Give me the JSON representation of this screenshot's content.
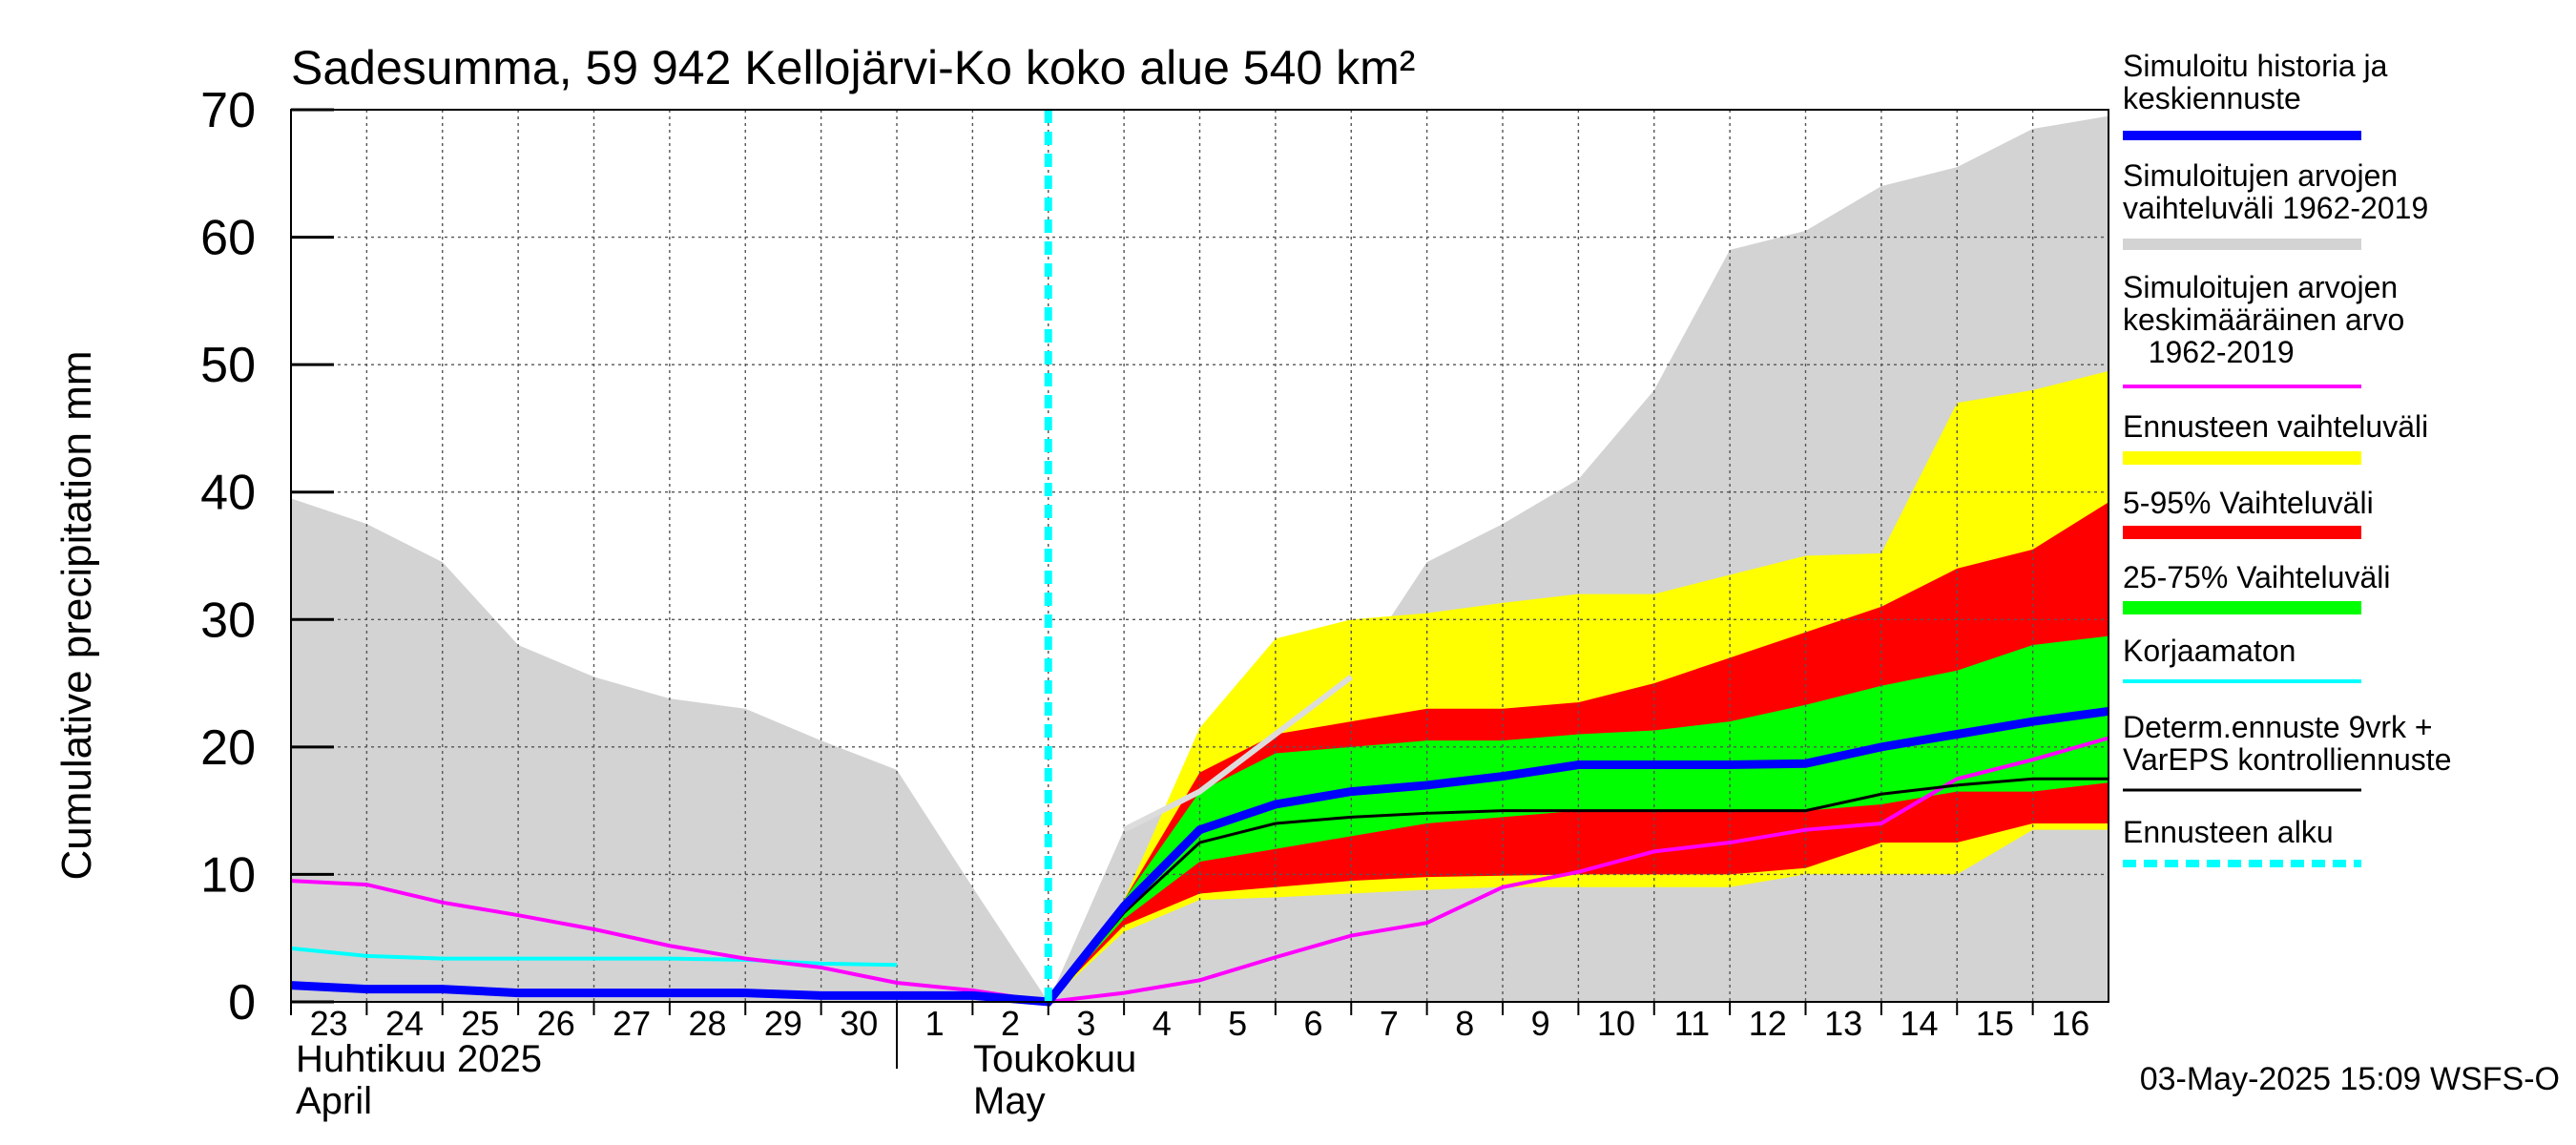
{
  "chart_data": {
    "type": "area",
    "title": "Sadesumma, 59 942 Kellojärvi-Ko koko alue 540 km²",
    "ylabel": "Cumulative precipitation   mm",
    "ylim": [
      0,
      70
    ],
    "yticks": [
      0,
      10,
      20,
      30,
      40,
      50,
      60,
      70
    ],
    "x_start_day": -10,
    "x_end_day": 14,
    "x_tick_labels": [
      "23",
      "24",
      "25",
      "26",
      "27",
      "28",
      "29",
      "30",
      "1",
      "2",
      "3",
      "4",
      "5",
      "6",
      "7",
      "8",
      "9",
      "10",
      "11",
      "12",
      "13",
      "14",
      "15",
      "16"
    ],
    "month_labels": {
      "april_fi": "Huhtikuu  2025",
      "april_en": "April",
      "may_fi": "Toukokuu",
      "may_en": "May"
    },
    "forecast_start_day": 0,
    "timestamp": "03-May-2025 15:09 WSFS-O",
    "colors": {
      "sim_range": "#d3d3d3",
      "ens_range": "#ffff00",
      "p5_95": "#ff0000",
      "p25_75": "#00ff00",
      "sim_hist": "#0000ff",
      "mean": "#ff00ff",
      "uncorrected": "#00ffff",
      "determ": "#000000",
      "forecast_start": "#00ffff"
    },
    "series": {
      "sim_range_upper": {
        "x": [
          -10,
          -9,
          -8,
          -7,
          -6,
          -5,
          -4,
          -3,
          -2,
          -1,
          0,
          1,
          2,
          3,
          4,
          5,
          6,
          7,
          8,
          9,
          10,
          11,
          12,
          13,
          14
        ],
        "values": [
          39.5,
          37.5,
          34.5,
          28,
          25.5,
          23.8,
          23,
          20.5,
          18.2,
          9,
          0,
          13.5,
          16.5,
          21,
          25.5,
          34.5,
          37.5,
          41,
          48,
          59,
          60.5,
          64,
          65.5,
          68.5,
          69.5
        ]
      },
      "sim_range_lower": {
        "x": [
          -10,
          0,
          14
        ],
        "values": [
          0,
          0,
          0
        ]
      },
      "ens_upper": {
        "x": [
          0,
          1,
          2,
          3,
          4,
          5,
          6,
          7,
          8,
          9,
          10,
          11,
          12,
          13,
          14
        ],
        "values": [
          0,
          8,
          21.5,
          28.5,
          30,
          30.5,
          31.3,
          32,
          32,
          33.5,
          35,
          35.2,
          47,
          48,
          49.5
        ]
      },
      "ens_lower": {
        "x": [
          0,
          1,
          2,
          3,
          4,
          5,
          6,
          7,
          8,
          9,
          10,
          11,
          12,
          13,
          14
        ],
        "values": [
          0,
          5.5,
          8,
          8.2,
          8.5,
          8.8,
          9,
          9,
          9,
          9,
          10,
          10,
          10,
          13.5,
          13.5
        ]
      },
      "p95": {
        "x": [
          0,
          1,
          2,
          3,
          4,
          5,
          6,
          7,
          8,
          9,
          10,
          11,
          12,
          13,
          14
        ],
        "values": [
          0,
          8,
          18,
          21,
          22,
          23,
          23,
          23.5,
          25,
          27,
          29,
          31,
          34,
          35.5,
          39.2
        ]
      },
      "p5": {
        "x": [
          0,
          1,
          2,
          3,
          4,
          5,
          6,
          7,
          8,
          9,
          10,
          11,
          12,
          13,
          14
        ],
        "values": [
          0,
          6,
          8.5,
          9,
          9.5,
          9.8,
          9.9,
          10,
          10,
          10,
          10.5,
          12.5,
          12.5,
          14,
          14
        ]
      },
      "p75": {
        "x": [
          0,
          1,
          2,
          3,
          4,
          5,
          6,
          7,
          8,
          9,
          10,
          11,
          12,
          13,
          14
        ],
        "values": [
          0,
          8,
          16.5,
          19.5,
          20,
          20.5,
          20.5,
          21,
          21.3,
          22,
          23.3,
          24.8,
          26,
          28,
          28.7
        ]
      },
      "p25": {
        "x": [
          0,
          1,
          2,
          3,
          4,
          5,
          6,
          7,
          8,
          9,
          10,
          11,
          12,
          13,
          14
        ],
        "values": [
          0,
          6.5,
          11,
          12,
          13,
          14,
          14.5,
          15,
          15,
          15,
          15,
          15.5,
          16.5,
          16.5,
          17.2
        ]
      },
      "sim_hist": {
        "x": [
          -10,
          -9,
          -8,
          -7,
          -6,
          -5,
          -4,
          -3,
          -2,
          -1,
          0,
          1,
          2,
          3,
          4,
          5,
          6,
          7,
          8,
          9,
          10,
          11,
          12,
          13,
          14
        ],
        "values": [
          1.3,
          1,
          1,
          0.7,
          0.7,
          0.7,
          0.7,
          0.5,
          0.5,
          0.5,
          0,
          7.5,
          13.5,
          15.5,
          16.5,
          17,
          17.7,
          18.6,
          18.6,
          18.6,
          18.7,
          20,
          21,
          22,
          22.8
        ]
      },
      "mean": {
        "x": [
          -10,
          -9,
          -8,
          -7,
          -6,
          -5,
          -4,
          -3,
          -2,
          -1,
          0,
          1,
          2,
          3,
          4,
          5,
          6,
          7,
          8,
          9,
          10,
          11,
          12,
          13,
          14
        ],
        "values": [
          9.5,
          9.2,
          7.8,
          6.8,
          5.7,
          4.4,
          3.4,
          2.7,
          1.5,
          0.9,
          0,
          0.7,
          1.7,
          3.5,
          5.2,
          6.2,
          9,
          10.2,
          11.8,
          12.5,
          13.5,
          14,
          17.5,
          19,
          20.7
        ]
      },
      "uncorrected": {
        "x": [
          -10,
          -9,
          -8,
          -7,
          -6,
          -5,
          -4,
          -3,
          -2
        ],
        "values": [
          4.2,
          3.6,
          3.4,
          3.4,
          3.4,
          3.4,
          3.3,
          3,
          2.9
        ]
      },
      "determ": {
        "x": [
          0,
          1,
          2,
          3,
          4,
          5,
          6,
          7,
          8,
          9,
          10,
          11,
          12,
          13,
          14
        ],
        "values": [
          0,
          7,
          12.5,
          14,
          14.5,
          14.8,
          15,
          15,
          15,
          15,
          15,
          16.3,
          17,
          17.5,
          17.5
        ]
      },
      "sim_hist_grey": {
        "x": [
          1,
          2,
          3,
          4
        ],
        "values": [
          13.5,
          16.5,
          21,
          25.5
        ]
      }
    },
    "legend": {
      "sim_hist": "Simuloitu historia ja\nkeskiennuste",
      "sim_range": "Simuloitujen arvojen\nvaihteluväli 1962-2019",
      "mean": "Simuloitujen arvojen\nkeskimääräinen arvo\n   1962-2019",
      "ens_range": "Ennusteen vaihteluväli",
      "p5_95": "5-95% Vaihteluväli",
      "p25_75": "25-75% Vaihteluväli",
      "uncorrected": "Korjaamaton",
      "determ": "Determ.ennuste 9vrk +\nVarEPS kontrolliennuste",
      "forecast_start": "Ennusteen alku"
    }
  }
}
